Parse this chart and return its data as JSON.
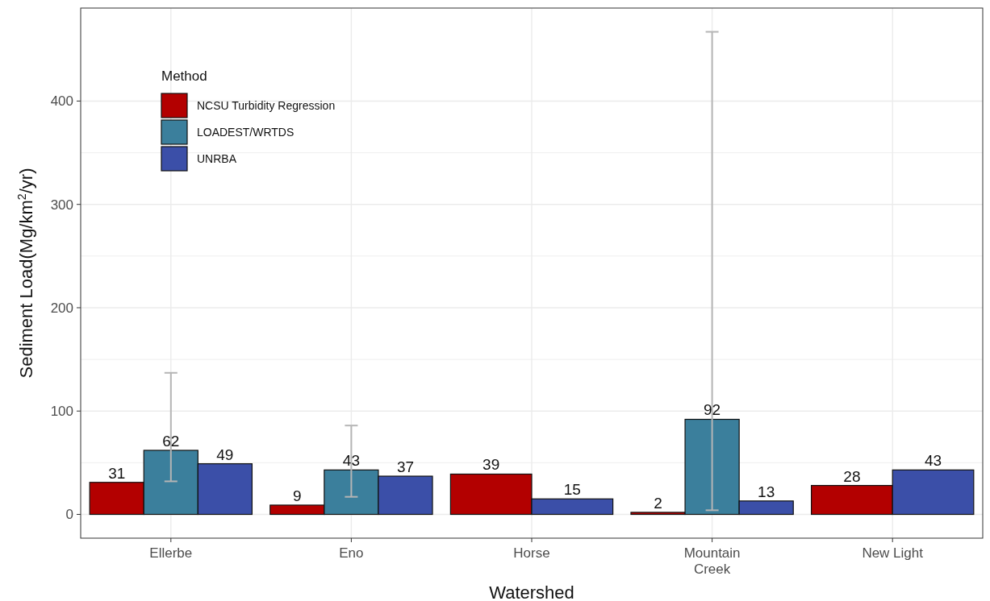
{
  "chart_data": {
    "type": "bar",
    "xlabel": "Watershed",
    "ylabel": "Sediment Load(Mg/km$^{2}$/yr)",
    "legend_title": "Method",
    "categories": [
      "Ellerbe",
      "Eno",
      "Horse",
      "Mountain Creek",
      "New Light"
    ],
    "series": [
      {
        "name": "NCSU Turbidity Regression",
        "color": "#b30000",
        "values": [
          31,
          9,
          39,
          2,
          28
        ]
      },
      {
        "name": "LOADEST/WRTDS",
        "color": "#3b7f9c",
        "values": [
          62,
          43,
          null,
          92,
          null
        ],
        "errors": [
          [
            32,
            137
          ],
          [
            17,
            86
          ],
          null,
          [
            4,
            467
          ],
          null
        ]
      },
      {
        "name": "UNRBA",
        "color": "#3b4fa8",
        "values": [
          49,
          37,
          15,
          13,
          43
        ]
      }
    ],
    "ylim": [
      -23,
      490
    ],
    "yticks": [
      0,
      100,
      200,
      300,
      400
    ],
    "grid": true,
    "legend": "top left",
    "data_labels": true
  }
}
